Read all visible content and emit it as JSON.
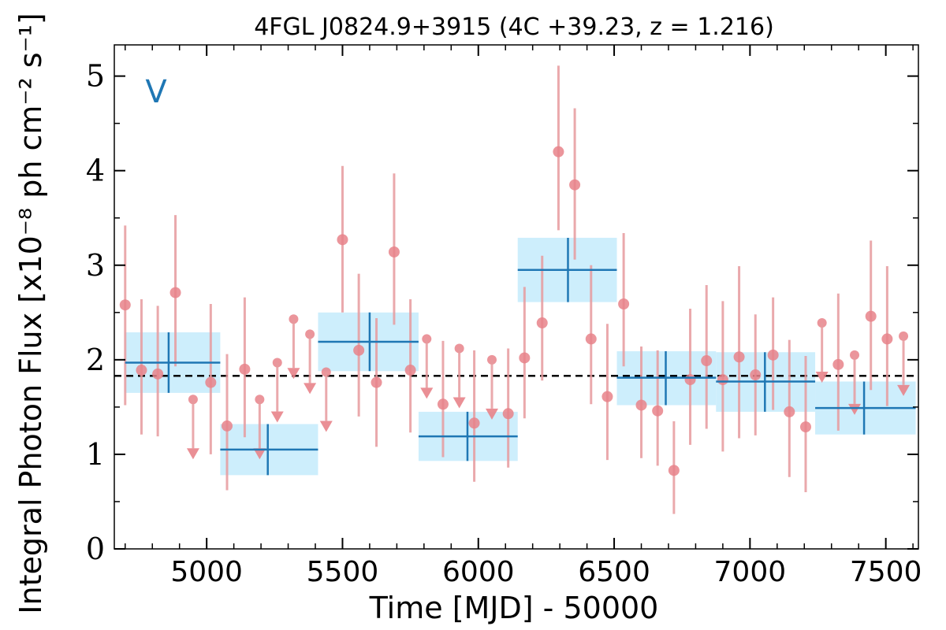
{
  "chart_data": {
    "type": "scatter",
    "title": "4FGL J0824.9+3915 (4C +39.23, z = 1.216)",
    "panel_label": "V",
    "xlabel": "Time [MJD] - 50000",
    "ylabel": "Integral Photon Flux [x10⁻⁸ ph cm⁻² s⁻¹]",
    "xlim": [
      4660,
      7620
    ],
    "ylim": [
      0,
      5.33
    ],
    "x_ticks": [
      "5000",
      "5500",
      "6000",
      "6500",
      "7000",
      "7500"
    ],
    "x_tick_values": [
      5000,
      5500,
      6000,
      6500,
      7000,
      7500
    ],
    "y_ticks": [
      "0",
      "1",
      "2",
      "3",
      "4",
      "5"
    ],
    "y_tick_values": [
      0,
      1,
      2,
      3,
      4,
      5
    ],
    "mean_flux": 1.83,
    "grid": false,
    "colors": {
      "points": "#e8838a",
      "errorbars": "#e69a9e",
      "blocks_fill": "#cdeefc",
      "blocks_line": "#1f77b4",
      "mean_line": "#000000"
    },
    "series": [
      {
        "kind": "detections",
        "points": [
          {
            "x": 4700,
            "y": 2.58,
            "lo": 1.52,
            "hi": 3.42
          },
          {
            "x": 4760,
            "y": 1.89,
            "lo": 1.21,
            "hi": 2.64
          },
          {
            "x": 4820,
            "y": 1.85,
            "lo": 1.19,
            "hi": 2.57
          },
          {
            "x": 4885,
            "y": 2.71,
            "lo": 1.93,
            "hi": 3.53
          },
          {
            "x": 5015,
            "y": 1.76,
            "lo": 1.0,
            "hi": 2.59
          },
          {
            "x": 5075,
            "y": 1.3,
            "lo": 0.62,
            "hi": 2.06
          },
          {
            "x": 5140,
            "y": 1.9,
            "lo": 1.18,
            "hi": 2.66
          },
          {
            "x": 5500,
            "y": 3.27,
            "lo": 2.5,
            "hi": 4.05
          },
          {
            "x": 5560,
            "y": 2.1,
            "lo": 1.4,
            "hi": 2.91
          },
          {
            "x": 5625,
            "y": 1.76,
            "lo": 1.08,
            "hi": 2.44
          },
          {
            "x": 5690,
            "y": 3.14,
            "lo": 2.37,
            "hi": 3.97
          },
          {
            "x": 5750,
            "y": 1.89,
            "lo": 1.23,
            "hi": 2.64
          },
          {
            "x": 5870,
            "y": 1.53,
            "lo": 0.97,
            "hi": 2.2
          },
          {
            "x": 5985,
            "y": 1.33,
            "lo": 0.71,
            "hi": 2.1
          },
          {
            "x": 6110,
            "y": 1.43,
            "lo": 0.86,
            "hi": 2.12
          },
          {
            "x": 6170,
            "y": 2.02,
            "lo": 1.38,
            "hi": 2.77
          },
          {
            "x": 6235,
            "y": 2.39,
            "lo": 1.78,
            "hi": 3.1
          },
          {
            "x": 6295,
            "y": 4.2,
            "lo": 3.37,
            "hi": 5.11
          },
          {
            "x": 6355,
            "y": 3.85,
            "lo": 3.06,
            "hi": 4.66
          },
          {
            "x": 6415,
            "y": 2.22,
            "lo": 1.53,
            "hi": 3.0
          },
          {
            "x": 6475,
            "y": 1.61,
            "lo": 0.94,
            "hi": 2.38
          },
          {
            "x": 6535,
            "y": 2.59,
            "lo": 1.93,
            "hi": 3.34
          },
          {
            "x": 6600,
            "y": 1.52,
            "lo": 0.96,
            "hi": 2.14
          },
          {
            "x": 6660,
            "y": 1.46,
            "lo": 0.88,
            "hi": 2.1
          },
          {
            "x": 6720,
            "y": 0.83,
            "lo": 0.37,
            "hi": 1.35
          },
          {
            "x": 6780,
            "y": 1.79,
            "lo": 1.1,
            "hi": 2.54
          },
          {
            "x": 6840,
            "y": 1.99,
            "lo": 1.27,
            "hi": 2.79
          },
          {
            "x": 6900,
            "y": 1.79,
            "lo": 1.03,
            "hi": 2.62
          },
          {
            "x": 6960,
            "y": 2.03,
            "lo": 1.17,
            "hi": 2.99
          },
          {
            "x": 7020,
            "y": 1.84,
            "lo": 1.2,
            "hi": 2.48
          },
          {
            "x": 7085,
            "y": 2.05,
            "lo": 1.47,
            "hi": 2.66
          },
          {
            "x": 7145,
            "y": 1.45,
            "lo": 0.76,
            "hi": 2.21
          },
          {
            "x": 7205,
            "y": 1.29,
            "lo": 0.6,
            "hi": 2.04
          },
          {
            "x": 7325,
            "y": 1.95,
            "lo": 1.25,
            "hi": 2.7
          },
          {
            "x": 7445,
            "y": 2.46,
            "lo": 1.68,
            "hi": 3.26
          },
          {
            "x": 7505,
            "y": 2.22,
            "lo": 1.51,
            "hi": 2.99
          }
        ]
      },
      {
        "kind": "upper_limits",
        "points": [
          {
            "x": 4950,
            "y": 1.58
          },
          {
            "x": 5195,
            "y": 1.58
          },
          {
            "x": 5260,
            "y": 1.97
          },
          {
            "x": 5320,
            "y": 2.43
          },
          {
            "x": 5380,
            "y": 2.27
          },
          {
            "x": 5440,
            "y": 1.87
          },
          {
            "x": 5810,
            "y": 2.22
          },
          {
            "x": 5930,
            "y": 2.12
          },
          {
            "x": 6050,
            "y": 2.0
          },
          {
            "x": 7265,
            "y": 2.39
          },
          {
            "x": 7385,
            "y": 2.05
          },
          {
            "x": 7565,
            "y": 2.25
          }
        ]
      }
    ],
    "bayesian_blocks": [
      {
        "x0": 4700,
        "x1": 5050,
        "y": 1.97,
        "y_lo": 1.65,
        "y_hi": 2.29,
        "xc": 4860
      },
      {
        "x0": 5050,
        "x1": 5410,
        "y": 1.05,
        "y_lo": 0.78,
        "y_hi": 1.32,
        "xc": 5225
      },
      {
        "x0": 5410,
        "x1": 5780,
        "y": 2.19,
        "y_lo": 1.88,
        "y_hi": 2.5,
        "xc": 5600
      },
      {
        "x0": 5780,
        "x1": 6145,
        "y": 1.19,
        "y_lo": 0.93,
        "y_hi": 1.45,
        "xc": 5960
      },
      {
        "x0": 6145,
        "x1": 6510,
        "y": 2.95,
        "y_lo": 2.61,
        "y_hi": 3.29,
        "xc": 6330
      },
      {
        "x0": 6510,
        "x1": 6875,
        "y": 1.81,
        "y_lo": 1.52,
        "y_hi": 2.09,
        "xc": 6690
      },
      {
        "x0": 6875,
        "x1": 7240,
        "y": 1.77,
        "y_lo": 1.45,
        "y_hi": 2.08,
        "xc": 7055
      },
      {
        "x0": 7240,
        "x1": 7610,
        "y": 1.49,
        "y_lo": 1.21,
        "y_hi": 1.77,
        "xc": 7420
      }
    ]
  }
}
